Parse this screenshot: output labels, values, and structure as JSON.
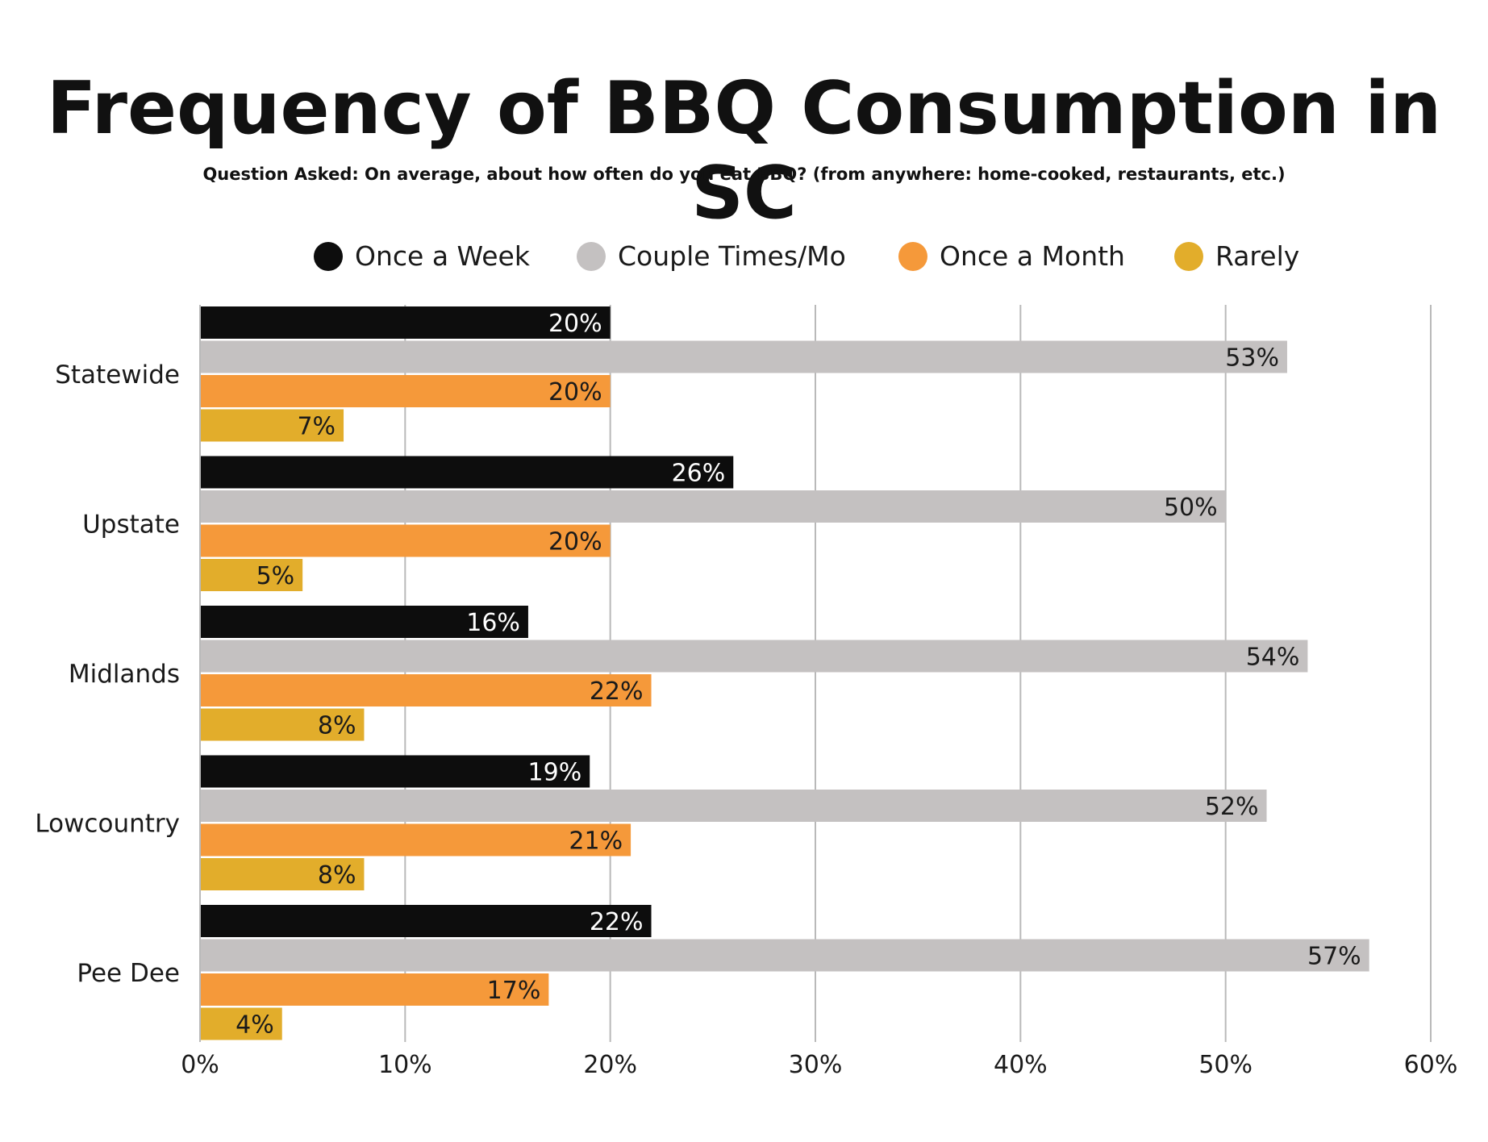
{
  "chart_data": {
    "type": "bar",
    "orientation": "horizontal",
    "title": "Frequency of BBQ Consumption in SC",
    "subtitle": "Question Asked: On average, about how often do you eat BBQ? (from anywhere: home-cooked, restaurants, etc.)",
    "categories": [
      "Statewide",
      "Upstate",
      "Midlands",
      "Lowcountry",
      "Pee Dee"
    ],
    "series": [
      {
        "name": "Once a Week",
        "color": "#0d0d0d",
        "label_color": "#ffffff",
        "values": [
          20,
          26,
          16,
          19,
          22
        ],
        "labels": [
          "20%",
          "26%",
          "16%",
          "19%",
          "22%"
        ]
      },
      {
        "name": "Couple Times/Mo",
        "color": "#c4c1c1",
        "label_color": "#1a1a1a",
        "values": [
          53,
          50,
          54,
          52,
          57
        ],
        "labels": [
          "53%",
          "50%",
          "54%",
          "52%",
          "57%"
        ]
      },
      {
        "name": "Once a Month",
        "color": "#f5993a",
        "label_color": "#1a1a1a",
        "values": [
          20,
          20,
          22,
          21,
          17
        ],
        "labels": [
          "20%",
          "20%",
          "22%",
          "21%",
          "17%"
        ]
      },
      {
        "name": "Rarely",
        "color": "#e2ad2b",
        "label_color": "#1a1a1a",
        "values": [
          7,
          5,
          8,
          8,
          4
        ],
        "labels": [
          "7%",
          "5%",
          "8%",
          "8%",
          "4%"
        ]
      }
    ],
    "xlim": [
      0,
      60
    ],
    "xticks": [
      0,
      10,
      20,
      30,
      40,
      50,
      60
    ],
    "xtick_labels": [
      "0%",
      "10%",
      "20%",
      "30%",
      "40%",
      "50%",
      "60%"
    ],
    "grid": true,
    "legend_position": "top"
  }
}
